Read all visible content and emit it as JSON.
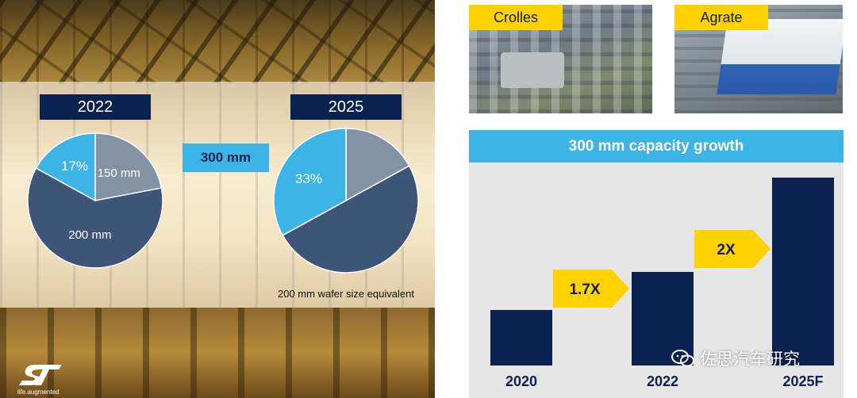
{
  "left_panel": {
    "pie_2022_title": "2022",
    "pie_2025_title": "2025",
    "size_tag": "300 mm",
    "footnote": "200 mm wafer size equivalent",
    "logo_tagline": "life.augmented"
  },
  "photos": {
    "crolles_label": "Crolles",
    "agrate_label": "Agrate"
  },
  "growth": {
    "title": "300 mm capacity growth",
    "multiplier_1": "1.7X",
    "multiplier_2": "2X"
  },
  "watermark": "佐思汽车研究",
  "colors": {
    "navy": "#0b2250",
    "accent_blue": "#3cb4e6",
    "yellow": "#ffd200",
    "slice_200mm": "#3e5577",
    "slice_150mm": "#8492a6"
  },
  "chart_data": [
    {
      "type": "pie",
      "title": "2022",
      "slices": [
        {
          "label": "150 mm",
          "value": 22,
          "display": "150 mm",
          "color": "#8492a6"
        },
        {
          "label": "200 mm",
          "value": 61,
          "display": "200 mm",
          "color": "#3e5577"
        },
        {
          "label": "300 mm",
          "value": 17,
          "display": "17%",
          "color": "#3cb4e6"
        }
      ]
    },
    {
      "type": "pie",
      "title": "2025",
      "slices": [
        {
          "label": "150 mm",
          "value": 17,
          "display": "",
          "color": "#8492a6"
        },
        {
          "label": "200 mm",
          "value": 50,
          "display": "",
          "color": "#3e5577"
        },
        {
          "label": "300 mm",
          "value": 33,
          "display": "33%",
          "color": "#3cb4e6"
        }
      ]
    },
    {
      "type": "bar",
      "title": "300 mm capacity growth",
      "categories": [
        "2020",
        "2022",
        "2025F"
      ],
      "values": [
        1.0,
        1.7,
        3.4
      ],
      "annotations": [
        "1.7X",
        "2X"
      ],
      "ylim": [
        0,
        3.4
      ]
    }
  ]
}
